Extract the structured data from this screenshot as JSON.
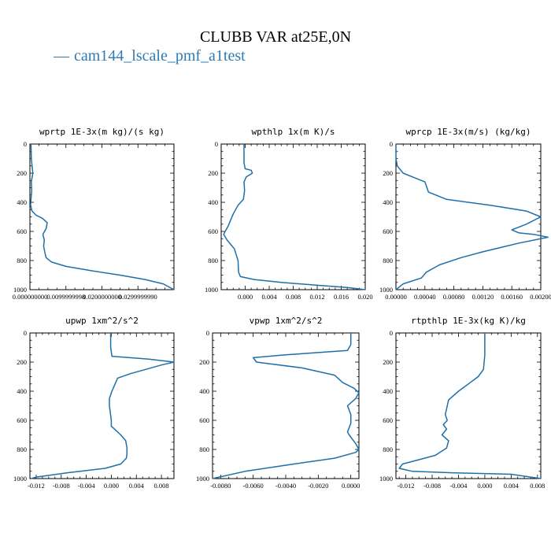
{
  "figure": {
    "title": "CLUBB VAR at25E,0N",
    "legend": {
      "symbol": "—",
      "label": "cam144_lscale_pmf_a1test",
      "color": "#2e7bb4"
    }
  },
  "chart_data": [
    {
      "type": "line",
      "title": "wprtp  1E-3x(m kg)/(s kg)",
      "xlim": [
        0,
        0.04
      ],
      "ylim": [
        1000,
        0
      ],
      "xticks": [
        0,
        0.01,
        0.02,
        0.03
      ],
      "xticklabels": [
        "0.000000000",
        "0.0099999998",
        "0.0200000000",
        "0.0299999990"
      ],
      "yticks": [
        0,
        200,
        400,
        600,
        800,
        1000
      ],
      "series": [
        {
          "color": "#1f6fa8",
          "x": [
            0.0003,
            0.0004,
            0.0008,
            0.0004,
            0.0005,
            0.0003,
            0.0002,
            0.0006,
            0.0018,
            0.0035,
            0.0048,
            0.0045,
            0.0036,
            0.004,
            0.0038,
            0.0041,
            0.0045,
            0.006,
            0.01,
            0.017,
            0.025,
            0.032,
            0.037,
            0.04
          ],
          "y": [
            0,
            100,
            200,
            260,
            320,
            380,
            420,
            460,
            490,
            510,
            540,
            580,
            620,
            660,
            700,
            740,
            780,
            810,
            840,
            870,
            900,
            930,
            960,
            1000
          ]
        }
      ]
    },
    {
      "type": "line",
      "title": "wpthlp  1x(m K)/s",
      "xlim": [
        -0.004,
        0.02
      ],
      "ylim": [
        1000,
        0
      ],
      "xticks": [
        0,
        0.004,
        0.008,
        0.012,
        0.016,
        0.02
      ],
      "xticklabels": [
        "0.000",
        "0.004",
        "0.008",
        "0.012",
        "0.016",
        "0.020"
      ],
      "yticks": [
        0,
        200,
        400,
        600,
        800,
        1000
      ],
      "series": [
        {
          "color": "#1f6fa8",
          "x": [
            -0.0002,
            -0.0002,
            0.0,
            0.001,
            0.0012,
            0.0002,
            -0.0002,
            -0.0001,
            -0.0003,
            -0.0012,
            -0.002,
            -0.0028,
            -0.0036,
            -0.003,
            -0.0018,
            -0.0012,
            -0.0011,
            -0.0008,
            0.0015,
            0.006,
            0.012,
            0.017,
            0.02
          ],
          "y": [
            0,
            130,
            170,
            180,
            200,
            225,
            260,
            320,
            380,
            420,
            480,
            560,
            620,
            660,
            720,
            800,
            880,
            910,
            930,
            950,
            970,
            985,
            1000
          ]
        }
      ]
    },
    {
      "type": "line",
      "title": "wprcp  1E-3x(m/s) (kg/kg)",
      "xlim": [
        0,
        0.002
      ],
      "ylim": [
        1000,
        0
      ],
      "xticks": [
        0,
        0.0004,
        0.0008,
        0.0012,
        0.0016,
        0.002
      ],
      "xticklabels": [
        "0.00000",
        "0.00040",
        "0.00080",
        "0.00120",
        "0.00160",
        "0.00200"
      ],
      "yticks": [
        0,
        200,
        400,
        600,
        800,
        1000
      ],
      "series": [
        {
          "color": "#1f6fa8",
          "x": [
            0.0,
            0.0,
            2e-05,
            0.0001,
            0.00025,
            0.0004,
            0.00045,
            0.0007,
            0.0013,
            0.0018,
            0.002,
            0.0018,
            0.0016,
            0.0017,
            0.0019,
            0.0021,
            0.0017,
            0.0012,
            0.0009,
            0.0006,
            0.00042,
            0.00035,
            0.0001,
            0.0
          ],
          "y": [
            0,
            100,
            150,
            200,
            230,
            260,
            330,
            380,
            420,
            460,
            500,
            550,
            590,
            610,
            620,
            640,
            680,
            740,
            780,
            830,
            880,
            920,
            960,
            1000
          ]
        }
      ]
    },
    {
      "type": "line",
      "title": "upwp  1xm^2/s^2",
      "xlim": [
        -0.013,
        0.01
      ],
      "ylim": [
        1000,
        0
      ],
      "xticks": [
        -0.012,
        -0.008,
        -0.004,
        0,
        0.004,
        0.008
      ],
      "xticklabels": [
        "-0.012",
        "-0.008",
        "-0.004",
        "0.000",
        "0.004",
        "0.008"
      ],
      "yticks": [
        0,
        200,
        400,
        600,
        800,
        1000
      ],
      "series": [
        {
          "color": "#1f6fa8",
          "x": [
            -0.0001,
            -0.0001,
            0.0001,
            0.006,
            0.01,
            0.008,
            0.003,
            0.001,
            0.0005,
            0.0001,
            -0.0003,
            -0.0003,
            0.0,
            0.0,
            0.0005,
            0.0015,
            0.0023,
            0.0025,
            0.0025,
            0.0024,
            0.0015,
            -0.001,
            -0.007,
            -0.012,
            -0.0128
          ],
          "y": [
            0,
            100,
            160,
            180,
            200,
            220,
            280,
            310,
            360,
            400,
            450,
            500,
            600,
            640,
            660,
            700,
            740,
            790,
            830,
            860,
            900,
            930,
            960,
            990,
            1000
          ]
        }
      ]
    },
    {
      "type": "line",
      "title": "vpwp  1xm^2/s^2",
      "xlim": [
        -0.0085,
        0.0005
      ],
      "ylim": [
        1000,
        0
      ],
      "xticks": [
        -0.008,
        -0.006,
        -0.004,
        -0.002,
        0
      ],
      "xticklabels": [
        "-0.0080",
        "-0.0060",
        "-0.0040",
        "-0.0020",
        "0.0000"
      ],
      "yticks": [
        0,
        200,
        400,
        600,
        800,
        1000
      ],
      "series": [
        {
          "color": "#1f6fa8",
          "x": [
            0.0,
            0.0,
            -0.0002,
            -0.004,
            -0.006,
            -0.0058,
            -0.003,
            -0.001,
            -0.0005,
            0.0002,
            0.0005,
            0.0003,
            -0.0002,
            0.0,
            0.0,
            -0.0002,
            -0.0001,
            0.0003,
            0.0005,
            0.0003,
            -0.001,
            -0.0035,
            -0.0065,
            -0.0085
          ],
          "y": [
            0,
            80,
            120,
            150,
            170,
            200,
            240,
            290,
            340,
            380,
            410,
            450,
            500,
            560,
            620,
            680,
            700,
            760,
            800,
            820,
            860,
            900,
            950,
            1000
          ]
        }
      ]
    },
    {
      "type": "line",
      "title": "rtpthlp  1E-3x(kg K)/kg",
      "xlim": [
        -0.0135,
        0.0085
      ],
      "ylim": [
        1000,
        0
      ],
      "xticks": [
        -0.012,
        -0.008,
        -0.004,
        0,
        0.004,
        0.008
      ],
      "xticklabels": [
        "-0.012",
        "-0.008",
        "-0.004",
        "0.000",
        "0.004",
        "0.008"
      ],
      "yticks": [
        0,
        200,
        400,
        600,
        800,
        1000
      ],
      "series": [
        {
          "color": "#1f6fa8",
          "x": [
            0.0,
            0.0,
            -0.0002,
            -0.001,
            -0.0025,
            -0.004,
            -0.0055,
            -0.0058,
            -0.006,
            -0.0057,
            -0.0063,
            -0.0058,
            -0.0065,
            -0.0055,
            -0.0058,
            -0.0075,
            -0.01,
            -0.0125,
            -0.013,
            -0.011,
            -0.005,
            0.004,
            0.0085
          ],
          "y": [
            0,
            150,
            250,
            300,
            350,
            400,
            460,
            520,
            560,
            600,
            630,
            660,
            700,
            740,
            790,
            840,
            870,
            900,
            930,
            950,
            960,
            970,
            1000
          ]
        }
      ]
    }
  ]
}
